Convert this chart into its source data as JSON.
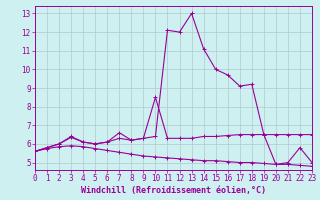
{
  "title": "",
  "xlabel": "Windchill (Refroidissement éolien,°C)",
  "ylabel": "",
  "bg_color": "#cff0f0",
  "grid_color": "#b0c8cc",
  "line_color": "#990099",
  "x": [
    0,
    1,
    2,
    3,
    4,
    5,
    6,
    7,
    8,
    9,
    10,
    11,
    12,
    13,
    14,
    15,
    16,
    17,
    18,
    19,
    20,
    21,
    22,
    23
  ],
  "line1": [
    5.6,
    5.8,
    6.0,
    6.4,
    6.1,
    6.0,
    6.1,
    6.3,
    6.2,
    6.3,
    6.4,
    12.1,
    12.0,
    13.0,
    11.1,
    10.0,
    9.7,
    9.1,
    9.2,
    6.5,
    4.9,
    5.0,
    5.8,
    5.0
  ],
  "line2": [
    5.6,
    5.8,
    6.0,
    6.35,
    6.1,
    6.0,
    6.1,
    6.6,
    6.2,
    6.3,
    8.5,
    6.3,
    6.3,
    6.3,
    6.4,
    6.4,
    6.45,
    6.5,
    6.5,
    6.5,
    6.5,
    6.5,
    6.5,
    6.5
  ],
  "line3": [
    5.6,
    5.75,
    5.85,
    5.9,
    5.85,
    5.75,
    5.65,
    5.55,
    5.45,
    5.35,
    5.3,
    5.25,
    5.2,
    5.15,
    5.1,
    5.1,
    5.05,
    5.0,
    5.0,
    4.95,
    4.9,
    4.9,
    4.85,
    4.8
  ],
  "xlim": [
    0,
    23
  ],
  "ylim": [
    4.6,
    13.4
  ],
  "yticks": [
    5,
    6,
    7,
    8,
    9,
    10,
    11,
    12,
    13
  ],
  "xticks": [
    0,
    1,
    2,
    3,
    4,
    5,
    6,
    7,
    8,
    9,
    10,
    11,
    12,
    13,
    14,
    15,
    16,
    17,
    18,
    19,
    20,
    21,
    22,
    23
  ],
  "tick_fontsize": 5.5,
  "xlabel_fontsize": 6.0
}
